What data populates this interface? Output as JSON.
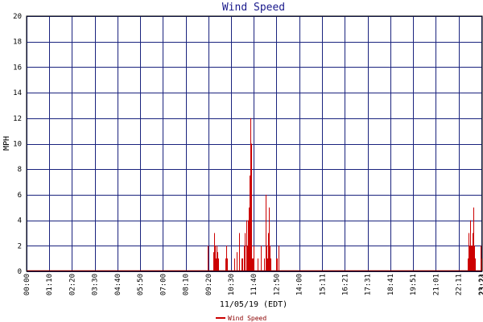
{
  "chart_data": {
    "type": "bar",
    "title": "Wind Speed",
    "xlabel": "11/05/19 (EDT)",
    "ylabel": "MPH",
    "ylim": [
      0,
      20
    ],
    "yticks": [
      0,
      2,
      4,
      6,
      8,
      10,
      12,
      14,
      16,
      18,
      20
    ],
    "xtick_labels": [
      "00:00",
      "01:10",
      "02:20",
      "03:30",
      "04:40",
      "05:50",
      "07:00",
      "08:10",
      "09:20",
      "10:30",
      "11:40",
      "12:50",
      "14:00",
      "15:11",
      "16:21",
      "17:31",
      "18:41",
      "19:51",
      "21:01",
      "22:11",
      "23:21"
    ],
    "xtick_end_label": "23:24",
    "grid": true,
    "legend_position": "bottom",
    "colors": {
      "plot_frame": "#000000",
      "grid": "#1a237e",
      "series": "#cc0000",
      "title": "#1a1a8c"
    },
    "series": [
      {
        "name": "Wind Speed",
        "x": [
          "09:18",
          "09:35",
          "09:38",
          "09:41",
          "09:43",
          "09:45",
          "09:47",
          "09:50",
          "10:12",
          "10:15",
          "10:18",
          "10:40",
          "10:48",
          "10:55",
          "11:03",
          "11:06",
          "11:10",
          "11:13",
          "11:16",
          "11:18",
          "11:20",
          "11:22",
          "11:24",
          "11:25",
          "11:27",
          "11:29",
          "11:31",
          "11:33",
          "11:35",
          "11:37",
          "11:39",
          "11:52",
          "12:02",
          "12:12",
          "12:17",
          "12:20",
          "12:22",
          "12:24",
          "12:26",
          "12:28",
          "12:30",
          "12:32",
          "12:50",
          "12:52",
          "12:56",
          "22:40",
          "22:42",
          "22:44",
          "22:46",
          "22:48",
          "22:50",
          "22:52",
          "22:54",
          "22:56",
          "22:58",
          "23:00",
          "23:02",
          "23:18",
          "23:20",
          "23:22"
        ],
        "values": [
          2,
          1.5,
          3,
          2,
          1,
          2,
          1.5,
          1,
          1,
          2,
          1,
          1,
          1.5,
          3,
          1,
          1,
          2,
          3,
          1,
          4,
          2,
          4,
          3,
          5,
          7.5,
          12,
          10,
          2,
          1,
          1,
          2,
          1,
          2,
          1,
          6,
          2,
          1,
          3,
          5,
          2,
          1,
          1,
          1,
          1,
          2,
          1,
          3,
          2,
          4,
          3,
          2,
          2,
          3,
          5,
          2,
          1,
          1,
          1,
          2,
          1
        ]
      }
    ]
  }
}
